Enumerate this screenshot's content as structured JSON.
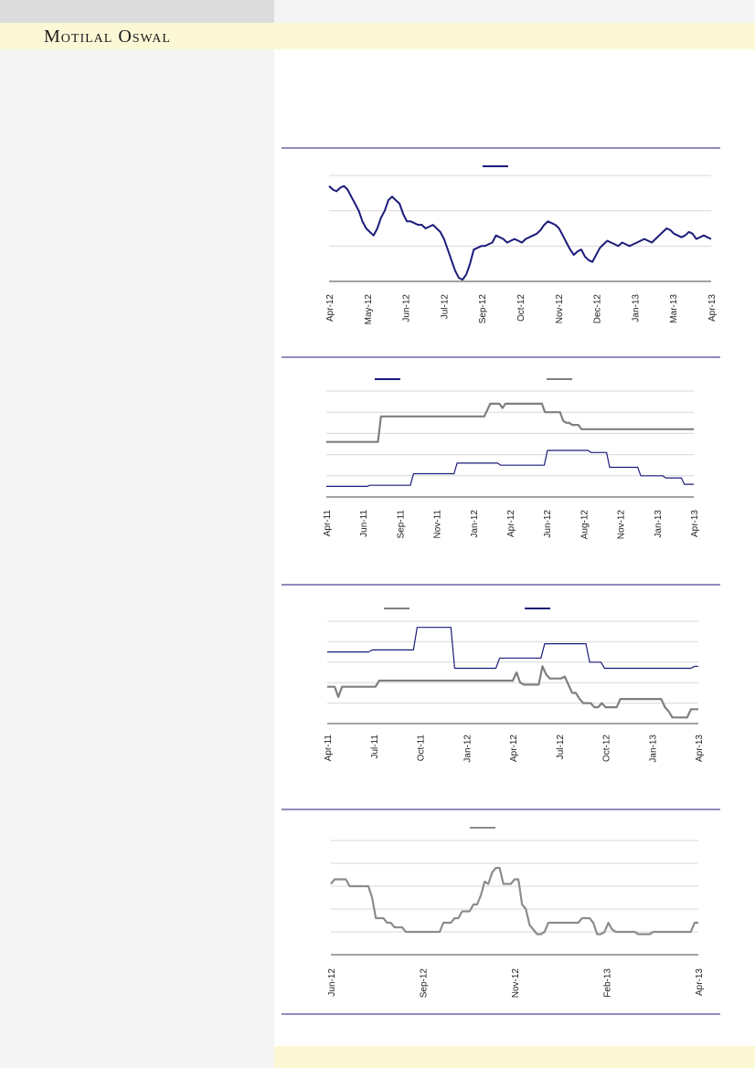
{
  "brand": {
    "name": "Motilal Oswal"
  },
  "colors": {
    "navy": "#1b1b7a",
    "grey": "#7f7f7f",
    "rule": "#1b1b7a",
    "grid": "#d9d9d9"
  },
  "chart_data": [
    {
      "type": "line",
      "title": "",
      "x_tick_labels": [
        "Apr-12",
        "May-12",
        "Jun-12",
        "Jul-12",
        "Sep-12",
        "Oct-12",
        "Nov-12",
        "Dec-12",
        "Jan-13",
        "Mar-13",
        "Apr-13"
      ],
      "ylim": [
        0,
        3
      ],
      "grid": true,
      "legend": "top-center",
      "series": [
        {
          "color": "#1b1b7a",
          "values": [
            2.7,
            2.6,
            2.55,
            2.65,
            2.7,
            2.6,
            2.4,
            2.2,
            2.0,
            1.7,
            1.5,
            1.4,
            1.3,
            1.5,
            1.8,
            2.0,
            2.3,
            2.4,
            2.3,
            2.2,
            1.9,
            1.7,
            1.7,
            1.65,
            1.6,
            1.6,
            1.5,
            1.55,
            1.6,
            1.5,
            1.4,
            1.2,
            0.9,
            0.6,
            0.3,
            0.1,
            0.05,
            0.2,
            0.5,
            0.9,
            0.95,
            1.0,
            1.0,
            1.05,
            1.1,
            1.3,
            1.25,
            1.2,
            1.1,
            1.15,
            1.2,
            1.15,
            1.1,
            1.2,
            1.25,
            1.3,
            1.35,
            1.45,
            1.6,
            1.7,
            1.65,
            1.6,
            1.5,
            1.3,
            1.1,
            0.9,
            0.75,
            0.85,
            0.9,
            0.7,
            0.6,
            0.55,
            0.75,
            0.95,
            1.05,
            1.15,
            1.1,
            1.05,
            1.0,
            1.1,
            1.05,
            1.0,
            1.05,
            1.1,
            1.15,
            1.2,
            1.15,
            1.1,
            1.2,
            1.3,
            1.4,
            1.5,
            1.45,
            1.35,
            1.3,
            1.25,
            1.3,
            1.4,
            1.35,
            1.2,
            1.25,
            1.3,
            1.25,
            1.2
          ]
        }
      ]
    },
    {
      "type": "line",
      "title": "",
      "x_tick_labels": [
        "Apr-11",
        "Jun-11",
        "Sep-11",
        "Nov-11",
        "Jan-12",
        "Apr-12",
        "Jun-12",
        "Aug-12",
        "Nov-12",
        "Jan-13",
        "Apr-13"
      ],
      "ylim": [
        0,
        5
      ],
      "grid": true,
      "legend": "top",
      "series": [
        {
          "color": "#7f7f7f",
          "values": [
            2.6,
            2.6,
            2.6,
            2.6,
            2.6,
            2.6,
            2.6,
            2.6,
            2.6,
            2.6,
            2.6,
            2.6,
            2.6,
            2.6,
            2.6,
            2.6,
            2.6,
            2.6,
            3.8,
            3.8,
            3.8,
            3.8,
            3.8,
            3.8,
            3.8,
            3.8,
            3.8,
            3.8,
            3.8,
            3.8,
            3.8,
            3.8,
            3.8,
            3.8,
            3.8,
            3.8,
            3.8,
            3.8,
            3.8,
            3.8,
            3.8,
            3.8,
            3.8,
            3.8,
            3.8,
            3.8,
            3.8,
            3.8,
            3.8,
            3.8,
            3.8,
            3.8,
            3.8,
            4.1,
            4.4,
            4.4,
            4.4,
            4.4,
            4.2,
            4.4,
            4.4,
            4.4,
            4.4,
            4.4,
            4.4,
            4.4,
            4.4,
            4.4,
            4.4,
            4.4,
            4.4,
            4.4,
            4.0,
            4.0,
            4.0,
            4.0,
            4.0,
            4.0,
            3.6,
            3.5,
            3.5,
            3.4,
            3.4,
            3.4,
            3.2,
            3.2,
            3.2,
            3.2,
            3.2,
            3.2,
            3.2,
            3.2,
            3.2,
            3.2,
            3.2,
            3.2,
            3.2,
            3.2,
            3.2,
            3.2,
            3.2,
            3.2,
            3.2,
            3.2,
            3.2,
            3.2,
            3.2,
            3.2,
            3.2,
            3.2,
            3.2,
            3.2,
            3.2,
            3.2,
            3.2,
            3.2,
            3.2,
            3.2,
            3.2,
            3.2,
            3.2,
            3.2
          ]
        },
        {
          "color": "#1b1b7a",
          "values": [
            0.5,
            0.5,
            0.5,
            0.5,
            0.5,
            0.5,
            0.5,
            0.5,
            0.5,
            0.5,
            0.5,
            0.5,
            0.5,
            0.5,
            0.55,
            0.55,
            0.55,
            0.55,
            0.55,
            0.55,
            0.55,
            0.55,
            0.55,
            0.55,
            0.55,
            0.55,
            0.55,
            0.55,
            1.1,
            1.1,
            1.1,
            1.1,
            1.1,
            1.1,
            1.1,
            1.1,
            1.1,
            1.1,
            1.1,
            1.1,
            1.1,
            1.1,
            1.6,
            1.6,
            1.6,
            1.6,
            1.6,
            1.6,
            1.6,
            1.6,
            1.6,
            1.6,
            1.6,
            1.6,
            1.6,
            1.6,
            1.5,
            1.5,
            1.5,
            1.5,
            1.5,
            1.5,
            1.5,
            1.5,
            1.5,
            1.5,
            1.5,
            1.5,
            1.5,
            1.5,
            1.5,
            2.2,
            2.2,
            2.2,
            2.2,
            2.2,
            2.2,
            2.2,
            2.2,
            2.2,
            2.2,
            2.2,
            2.2,
            2.2,
            2.2,
            2.1,
            2.1,
            2.1,
            2.1,
            2.1,
            2.1,
            1.4,
            1.4,
            1.4,
            1.4,
            1.4,
            1.4,
            1.4,
            1.4,
            1.4,
            1.4,
            1.0,
            1.0,
            1.0,
            1.0,
            1.0,
            1.0,
            1.0,
            1.0,
            0.9,
            0.9,
            0.9,
            0.9,
            0.9,
            0.9,
            0.6,
            0.6,
            0.6,
            0.6
          ]
        }
      ]
    },
    {
      "type": "line",
      "title": "",
      "x_tick_labels": [
        "Apr-11",
        "Jul-11",
        "Oct-11",
        "Jan-12",
        "Apr-12",
        "Jul-12",
        "Oct-12",
        "Jan-13",
        "Apr-13"
      ],
      "ylim": [
        0,
        5
      ],
      "grid": true,
      "legend": "top",
      "series": [
        {
          "color": "#7f7f7f",
          "values": [
            1.8,
            1.8,
            1.8,
            1.3,
            1.8,
            1.8,
            1.8,
            1.8,
            1.8,
            1.8,
            1.8,
            1.8,
            1.8,
            1.8,
            2.1,
            2.1,
            2.1,
            2.1,
            2.1,
            2.1,
            2.1,
            2.1,
            2.1,
            2.1,
            2.1,
            2.1,
            2.1,
            2.1,
            2.1,
            2.1,
            2.1,
            2.1,
            2.1,
            2.1,
            2.1,
            2.1,
            2.1,
            2.1,
            2.1,
            2.1,
            2.1,
            2.1,
            2.1,
            2.1,
            2.1,
            2.1,
            2.1,
            2.1,
            2.1,
            2.1,
            2.1,
            2.5,
            2.0,
            1.9,
            1.9,
            1.9,
            1.9,
            1.9,
            2.8,
            2.4,
            2.2,
            2.2,
            2.2,
            2.2,
            2.3,
            1.9,
            1.5,
            1.5,
            1.2,
            1.0,
            1.0,
            1.0,
            0.8,
            0.8,
            1.0,
            0.8,
            0.8,
            0.8,
            0.8,
            1.2,
            1.2,
            1.2,
            1.2,
            1.2,
            1.2,
            1.2,
            1.2,
            1.2,
            1.2,
            1.2,
            1.2,
            0.8,
            0.6,
            0.3,
            0.3,
            0.3,
            0.3,
            0.3,
            0.7,
            0.7,
            0.7
          ]
        },
        {
          "color": "#1b1b7a",
          "values": [
            3.5,
            3.5,
            3.5,
            3.5,
            3.5,
            3.5,
            3.5,
            3.5,
            3.5,
            3.5,
            3.5,
            3.5,
            3.6,
            3.6,
            3.6,
            3.6,
            3.6,
            3.6,
            3.6,
            3.6,
            3.6,
            3.6,
            3.6,
            3.6,
            4.7,
            4.7,
            4.7,
            4.7,
            4.7,
            4.7,
            4.7,
            4.7,
            4.7,
            4.7,
            2.7,
            2.7,
            2.7,
            2.7,
            2.7,
            2.7,
            2.7,
            2.7,
            2.7,
            2.7,
            2.7,
            2.7,
            3.2,
            3.2,
            3.2,
            3.2,
            3.2,
            3.2,
            3.2,
            3.2,
            3.2,
            3.2,
            3.2,
            3.2,
            3.9,
            3.9,
            3.9,
            3.9,
            3.9,
            3.9,
            3.9,
            3.9,
            3.9,
            3.9,
            3.9,
            3.9,
            3.0,
            3.0,
            3.0,
            3.0,
            2.7,
            2.7,
            2.7,
            2.7,
            2.7,
            2.7,
            2.7,
            2.7,
            2.7,
            2.7,
            2.7,
            2.7,
            2.7,
            2.7,
            2.7,
            2.7,
            2.7,
            2.7,
            2.7,
            2.7,
            2.7,
            2.7,
            2.7,
            2.7,
            2.8,
            2.8
          ]
        }
      ]
    },
    {
      "type": "line",
      "title": "",
      "x_tick_labels": [
        "Jun-12",
        "Sep-12",
        "Nov-12",
        "Feb-13",
        "Apr-13"
      ],
      "ylim": [
        0,
        5
      ],
      "grid": true,
      "legend": "top-center",
      "series": [
        {
          "color": "#8c8c8c",
          "values": [
            3.1,
            3.3,
            3.3,
            3.3,
            3.3,
            3.0,
            3.0,
            3.0,
            3.0,
            3.0,
            3.0,
            2.5,
            1.6,
            1.6,
            1.6,
            1.4,
            1.4,
            1.2,
            1.2,
            1.2,
            1.0,
            1.0,
            1.0,
            1.0,
            1.0,
            1.0,
            1.0,
            1.0,
            1.0,
            1.0,
            1.4,
            1.4,
            1.4,
            1.6,
            1.6,
            1.9,
            1.9,
            1.9,
            2.2,
            2.2,
            2.6,
            3.2,
            3.1,
            3.6,
            3.8,
            3.8,
            3.1,
            3.1,
            3.1,
            3.3,
            3.3,
            2.2,
            2.0,
            1.3,
            1.1,
            0.9,
            0.9,
            1.0,
            1.4,
            1.4,
            1.4,
            1.4,
            1.4,
            1.4,
            1.4,
            1.4,
            1.4,
            1.6,
            1.6,
            1.6,
            1.4,
            0.9,
            0.9,
            1.0,
            1.4,
            1.1,
            1.0,
            1.0,
            1.0,
            1.0,
            1.0,
            1.0,
            0.9,
            0.9,
            0.9,
            0.9,
            1.0,
            1.0,
            1.0,
            1.0,
            1.0,
            1.0,
            1.0,
            1.0,
            1.0,
            1.0,
            1.0,
            1.4,
            1.4
          ]
        }
      ]
    }
  ]
}
